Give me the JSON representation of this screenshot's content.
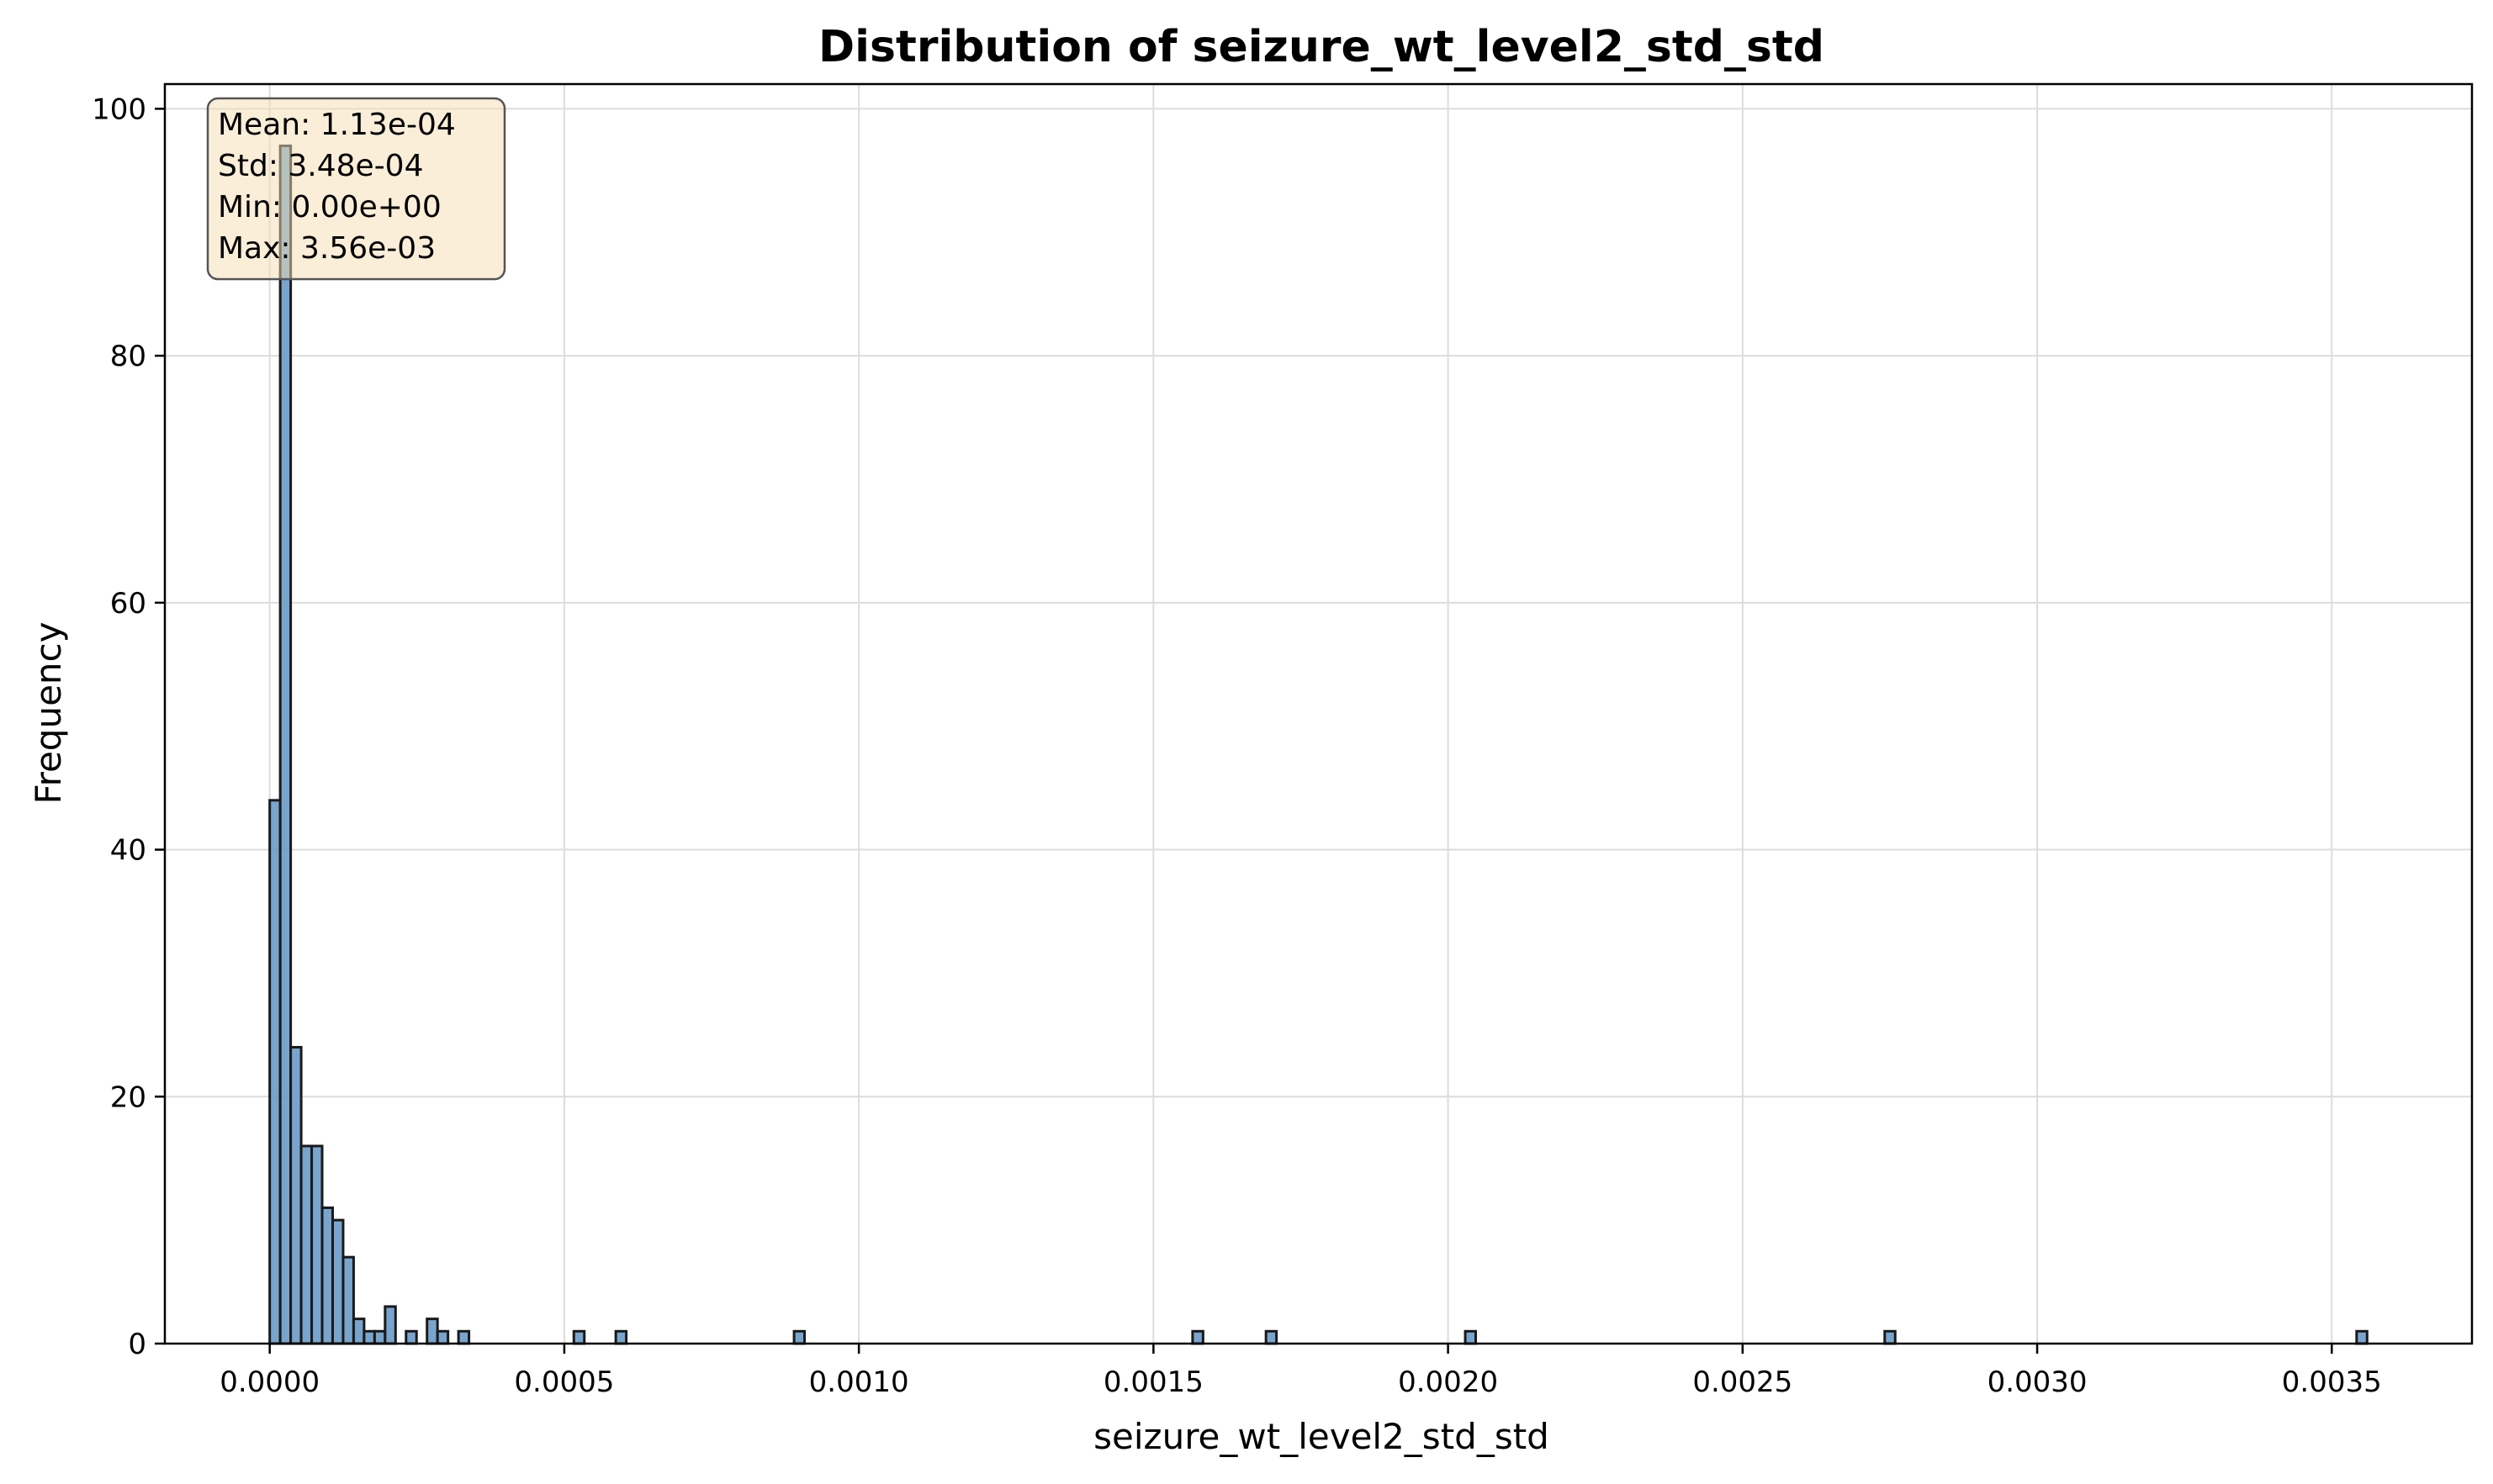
{
  "chart_data": {
    "type": "bar",
    "title": "Distribution of seizure_wt_level2_std_std",
    "xlabel": "seizure_wt_level2_std_std",
    "ylabel": "Frequency",
    "xlim": [
      -0.000178,
      0.003738
    ],
    "ylim": [
      0,
      102
    ],
    "xticks": [
      "0.0000",
      "0.0005",
      "0.0010",
      "0.0015",
      "0.0020",
      "0.0025",
      "0.0030",
      "0.0035"
    ],
    "xtick_values": [
      0,
      0.0005,
      0.001,
      0.0015,
      0.002,
      0.0025,
      0.003,
      0.0035
    ],
    "yticks": [
      "0",
      "20",
      "40",
      "60",
      "80",
      "100"
    ],
    "ytick_values": [
      0,
      20,
      40,
      60,
      80,
      100
    ],
    "grid": true,
    "bar_color": "#6a9ac8",
    "bar_edge_color": "#1a1a1a",
    "bin_width": 1.78e-05,
    "bins": [
      {
        "x": 0.0,
        "value": 44
      },
      {
        "x": 1.78e-05,
        "value": 97
      },
      {
        "x": 3.56e-05,
        "value": 24
      },
      {
        "x": 5.34e-05,
        "value": 16
      },
      {
        "x": 7.12e-05,
        "value": 16
      },
      {
        "x": 8.9e-05,
        "value": 11
      },
      {
        "x": 0.0001068,
        "value": 10
      },
      {
        "x": 0.0001246,
        "value": 7
      },
      {
        "x": 0.0001424,
        "value": 2
      },
      {
        "x": 0.0001602,
        "value": 1
      },
      {
        "x": 0.000178,
        "value": 1
      },
      {
        "x": 0.0001958,
        "value": 3
      },
      {
        "x": 0.0002314,
        "value": 1
      },
      {
        "x": 0.000267,
        "value": 2
      },
      {
        "x": 0.0002848,
        "value": 1
      },
      {
        "x": 0.0003204,
        "value": 1
      },
      {
        "x": 0.0005162,
        "value": 1
      },
      {
        "x": 0.0005874,
        "value": 1
      },
      {
        "x": 0.00089,
        "value": 1
      },
      {
        "x": 0.0015664,
        "value": 1
      },
      {
        "x": 0.001691,
        "value": 1
      },
      {
        "x": 0.0020292,
        "value": 1
      },
      {
        "x": 0.0027412,
        "value": 1
      },
      {
        "x": 0.0035422,
        "value": 1
      }
    ],
    "stats_box": {
      "lines": [
        "Mean: 1.13e-04",
        "Std: 3.48e-04",
        "Min: 0.00e+00",
        "Max: 3.56e-03"
      ],
      "fill": "#f5deb3",
      "placement": "top-left"
    }
  }
}
